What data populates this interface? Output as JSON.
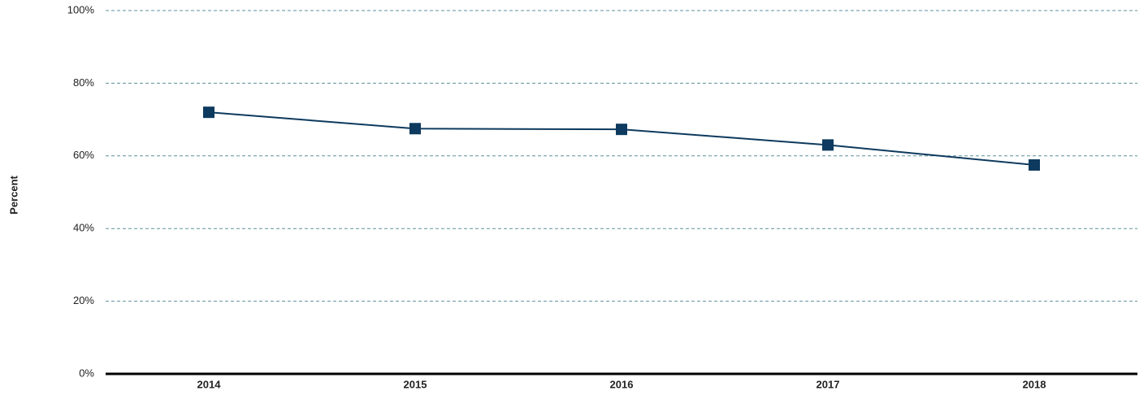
{
  "chart_data": {
    "type": "line",
    "y_label": "Percent",
    "categories": [
      "2014",
      "2015",
      "2016",
      "2017",
      "2018"
    ],
    "series": [
      {
        "name": "Percent",
        "color": "#0d3a5e",
        "values": [
          72,
          67.5,
          67.3,
          63,
          57.5
        ]
      }
    ],
    "ylim": [
      0,
      100
    ],
    "yticks": [
      {
        "value": 0,
        "label": "0%"
      },
      {
        "value": 20,
        "label": "20%"
      },
      {
        "value": 40,
        "label": "40%"
      },
      {
        "value": 60,
        "label": "60%"
      },
      {
        "value": 80,
        "label": "80%"
      },
      {
        "value": 100,
        "label": "100%"
      }
    ],
    "grid": true
  }
}
